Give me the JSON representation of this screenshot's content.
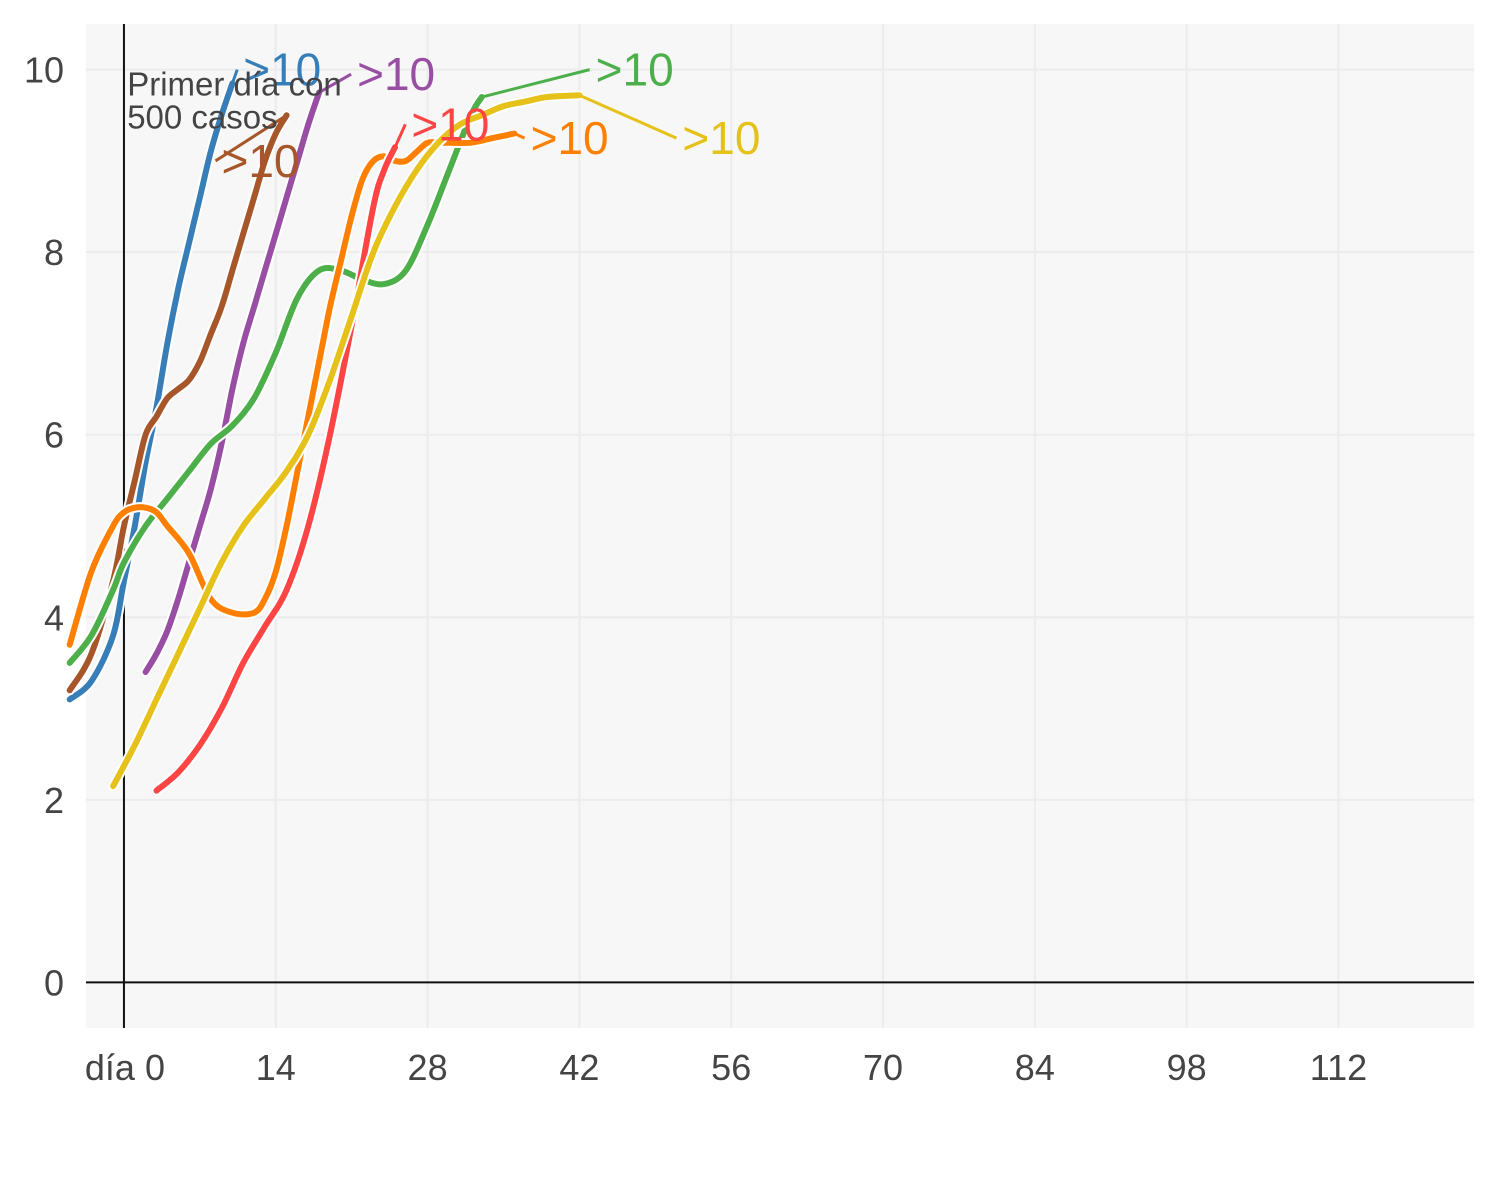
{
  "chart_data": {
    "type": "line",
    "xlim": [
      -3.5,
      124.5
    ],
    "ylim": [
      -0.5,
      10.5
    ],
    "x_ticks": [
      0,
      14,
      28,
      42,
      56,
      70,
      84,
      98,
      112
    ],
    "x_tick_labels": [
      "día 0",
      "14",
      "28",
      "42",
      "56",
      "70",
      "84",
      "98",
      "112"
    ],
    "y_ticks": [
      0,
      2,
      4,
      6,
      8,
      10
    ],
    "y_tick_labels": [
      "0",
      "2",
      "4",
      "6",
      "8",
      "10"
    ],
    "grid": true,
    "reference_line": {
      "x": 0
    },
    "annotation": {
      "lines": [
        "Primer día con",
        "500 casos"
      ],
      "x": 0.3,
      "y": 9.85
    },
    "series": [
      {
        "color": "#377eb8",
        "end_label": ">10",
        "x": [
          -5,
          -3,
          -1,
          0,
          1,
          2,
          3,
          4,
          5,
          6,
          7,
          8,
          9,
          10
        ],
        "y": [
          3.1,
          3.3,
          3.8,
          4.4,
          5.0,
          5.7,
          6.3,
          7.0,
          7.6,
          8.1,
          8.6,
          9.1,
          9.5,
          9.85
        ],
        "label_pos": [
          11,
          10.0
        ]
      },
      {
        "color": "#a65628",
        "end_label": ">10",
        "x": [
          -5,
          -3,
          -1,
          0,
          1,
          2,
          3,
          4,
          5,
          6,
          7,
          8,
          9,
          10,
          11,
          12,
          13,
          14,
          15
        ],
        "y": [
          3.2,
          3.6,
          4.4,
          5.0,
          5.5,
          6.0,
          6.2,
          6.4,
          6.5,
          6.6,
          6.8,
          7.1,
          7.4,
          7.8,
          8.2,
          8.6,
          9.0,
          9.3,
          9.5
        ],
        "label_pos": [
          9,
          9.0
        ]
      },
      {
        "color": "#984ea3",
        "end_label": ">10",
        "x": [
          2,
          3,
          4,
          5,
          6,
          7,
          8,
          9,
          10,
          11,
          12,
          13,
          14,
          15,
          16,
          17,
          18
        ],
        "y": [
          3.4,
          3.6,
          3.85,
          4.2,
          4.6,
          5.0,
          5.4,
          5.9,
          6.5,
          7.0,
          7.4,
          7.8,
          8.2,
          8.6,
          9.0,
          9.4,
          9.75
        ],
        "label_pos": [
          21.5,
          9.95
        ]
      },
      {
        "color": "#4daf4a",
        "end_label": ">10",
        "x": [
          -5,
          -3,
          -1,
          0,
          2,
          4,
          6,
          8,
          10,
          12,
          14,
          16,
          18,
          20,
          22,
          24,
          26,
          28,
          30,
          32,
          33
        ],
        "y": [
          3.5,
          3.8,
          4.3,
          4.6,
          5.0,
          5.3,
          5.6,
          5.9,
          6.1,
          6.4,
          6.9,
          7.5,
          7.8,
          7.8,
          7.7,
          7.65,
          7.8,
          8.3,
          8.9,
          9.5,
          9.7
        ],
        "label_pos": [
          43.5,
          10.0
        ]
      },
      {
        "color": "#ff7f00",
        "end_label": ">10",
        "x": [
          -5,
          -3,
          -1,
          0,
          1,
          2,
          3,
          4,
          6,
          8,
          10,
          12,
          13,
          14,
          15,
          16,
          17,
          18,
          19,
          20,
          21,
          22,
          23,
          24,
          25,
          26,
          27,
          28,
          29,
          30,
          32,
          34,
          36
        ],
        "y": [
          3.7,
          4.5,
          5.0,
          5.15,
          5.2,
          5.2,
          5.15,
          5.0,
          4.7,
          4.2,
          4.05,
          4.05,
          4.2,
          4.5,
          5.0,
          5.6,
          6.2,
          6.8,
          7.4,
          7.9,
          8.4,
          8.8,
          9.0,
          9.05,
          9.0,
          9.0,
          9.1,
          9.2,
          9.2,
          9.2,
          9.2,
          9.25,
          9.3
        ],
        "label_pos": [
          37.5,
          9.25
        ]
      },
      {
        "color": "#ff4444",
        "end_label": ">10",
        "x": [
          3,
          5,
          7,
          9,
          11,
          13,
          15,
          17,
          19,
          21,
          23,
          24,
          25
        ],
        "y": [
          2.1,
          2.3,
          2.6,
          3.0,
          3.5,
          3.9,
          4.3,
          5.0,
          6.0,
          7.2,
          8.5,
          8.9,
          9.15
        ],
        "label_pos": [
          26.5,
          9.4
        ]
      },
      {
        "color": "#e6c11a",
        "end_label": ">10",
        "x": [
          -1,
          1,
          3,
          5,
          7,
          9,
          11,
          13,
          15,
          17,
          19,
          21,
          23,
          25,
          27,
          29,
          31,
          33,
          35,
          37,
          39,
          42
        ],
        "y": [
          2.15,
          2.6,
          3.1,
          3.6,
          4.1,
          4.6,
          5.0,
          5.3,
          5.6,
          6.0,
          6.6,
          7.3,
          8.0,
          8.5,
          8.9,
          9.2,
          9.4,
          9.5,
          9.6,
          9.65,
          9.7,
          9.72
        ],
        "label_pos": [
          51.5,
          9.25
        ]
      }
    ]
  }
}
